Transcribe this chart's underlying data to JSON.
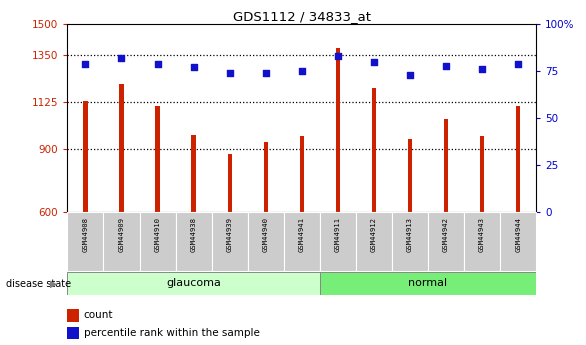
{
  "title": "GDS1112 / 34833_at",
  "samples": [
    "GSM44908",
    "GSM44909",
    "GSM44910",
    "GSM44938",
    "GSM44939",
    "GSM44940",
    "GSM44941",
    "GSM44911",
    "GSM44912",
    "GSM44913",
    "GSM44942",
    "GSM44943",
    "GSM44944"
  ],
  "counts": [
    1130,
    1215,
    1110,
    970,
    880,
    935,
    965,
    1385,
    1195,
    950,
    1045,
    965,
    1110
  ],
  "percentiles": [
    79,
    82,
    79,
    77,
    74,
    74,
    75,
    83,
    80,
    73,
    78,
    76,
    79
  ],
  "groups": [
    "glaucoma",
    "glaucoma",
    "glaucoma",
    "glaucoma",
    "glaucoma",
    "glaucoma",
    "glaucoma",
    "normal",
    "normal",
    "normal",
    "normal",
    "normal",
    "normal"
  ],
  "group_label": "disease state",
  "ylim_left": [
    600,
    1500
  ],
  "yticks_left": [
    600,
    900,
    1125,
    1350,
    1500
  ],
  "ylim_right": [
    0,
    100
  ],
  "yticks_right": [
    0,
    25,
    50,
    75,
    100
  ],
  "bar_color": "#cc2200",
  "dot_color": "#1111cc",
  "glaucoma_color": "#ccffcc",
  "normal_color": "#77ee77",
  "tick_bg_color": "#cccccc",
  "grid_color": "#000000",
  "left_tick_color": "#cc2200",
  "right_tick_color": "#0000cc",
  "bar_width": 0.12
}
